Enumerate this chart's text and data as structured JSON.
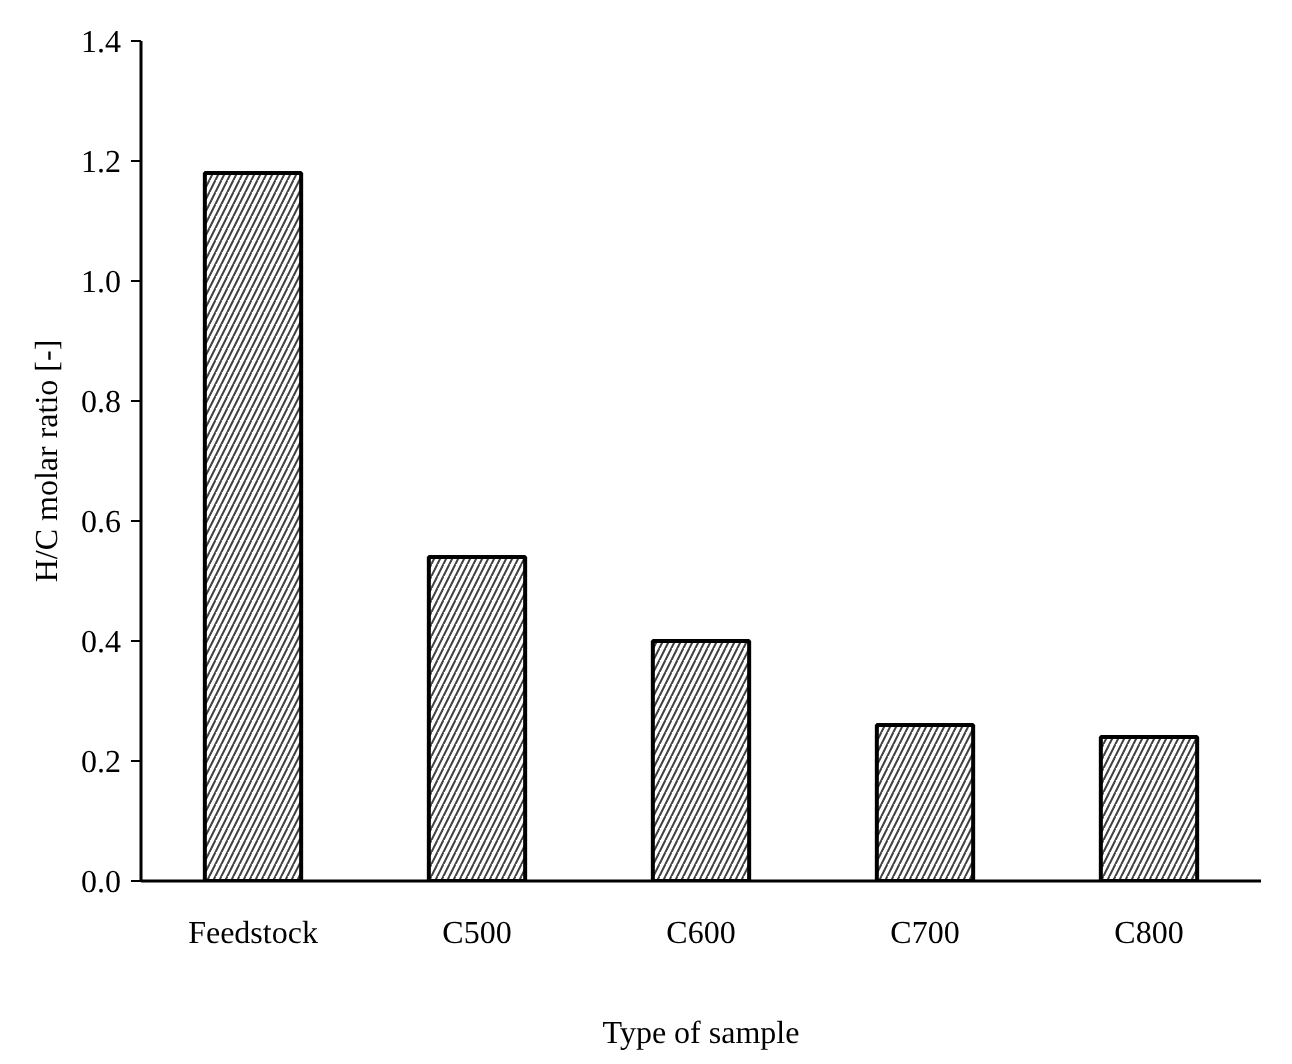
{
  "chart_data": {
    "type": "bar",
    "xlabel": "Type of sample",
    "ylabel": "H/C molar ratio [-]",
    "categories": [
      "Feedstock",
      "C500",
      "C600",
      "C700",
      "C800"
    ],
    "values": [
      1.18,
      0.54,
      0.4,
      0.26,
      0.24
    ],
    "color": "#000000",
    "ylim": [
      0,
      1.4
    ],
    "yticks": [
      {
        "value": 0,
        "label": "0.0"
      },
      0.2,
      0.4,
      0.6,
      0.8,
      {
        "value": 1,
        "label": "1.0"
      },
      1.2,
      1.4
    ],
    "grid": false
  }
}
